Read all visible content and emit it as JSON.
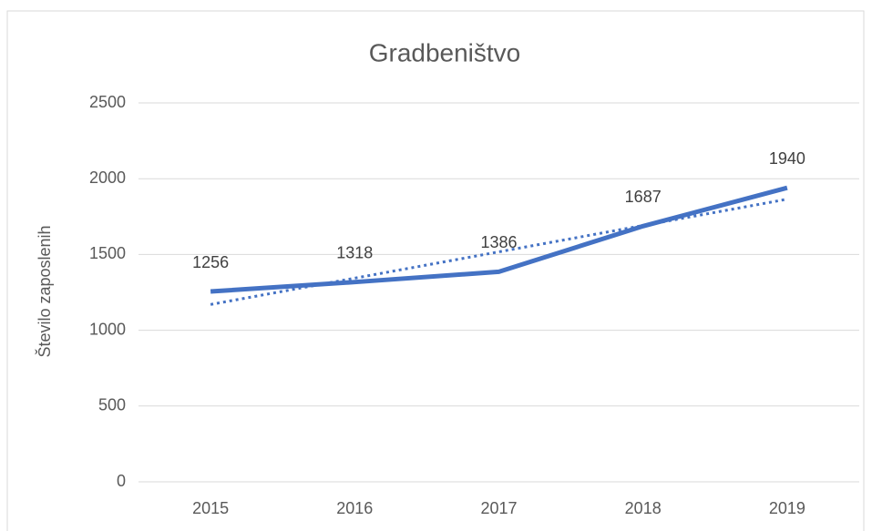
{
  "chart_data": {
    "type": "line",
    "title": "Gradbeništvo",
    "y_label": "Število zaposlenih",
    "categories": [
      "2015",
      "2016",
      "2017",
      "2018",
      "2019"
    ],
    "series": [
      {
        "color": "#4472c4",
        "values": [
          1256,
          1318,
          1386,
          1687,
          1940
        ],
        "value_labels": true
      },
      {
        "color": "#4472c4",
        "dash": "dotted",
        "values": [
          1170,
          1343.7,
          1517.4,
          1691.1,
          1864.8
        ]
      }
    ],
    "ylim": [
      0,
      2500
    ],
    "yticks": [
      0,
      500,
      1000,
      1500,
      2000,
      2500
    ],
    "grid": true
  }
}
